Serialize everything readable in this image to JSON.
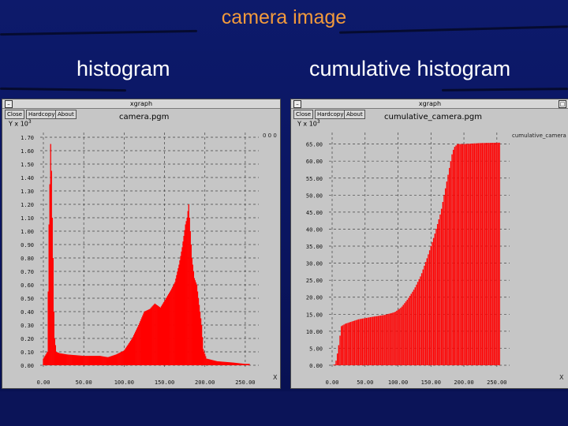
{
  "slide": {
    "title": "camera image",
    "left_caption": "histogram",
    "right_caption": "cumulative histogram"
  },
  "colors": {
    "background": "#0d1a6b",
    "title": "#f29a3c",
    "bars": "#ff0000",
    "window": "#c6c6c6"
  },
  "windows": [
    {
      "window_title": "xgraph",
      "buttons": [
        "Close",
        "Hardcopy",
        "About"
      ],
      "plot_title": "camera.pgm",
      "y_unit": "Y x 10^3",
      "y_unit_text": "Y x 10",
      "y_unit_exp": "3",
      "legend": "0 0 0",
      "x_corner": "X"
    },
    {
      "window_title": "xgraph",
      "buttons": [
        "Close",
        "Hardcopy",
        "About"
      ],
      "plot_title": "cumulative_camera.pgm",
      "y_unit": "Y x 10^3",
      "y_unit_text": "Y x 10",
      "y_unit_exp": "3",
      "legend": "cumulative_camera",
      "x_corner": "X"
    }
  ],
  "chart_data": [
    {
      "type": "bar",
      "title": "camera.pgm",
      "ylabel": "Y x 10^3",
      "xlim": [
        0,
        255
      ],
      "ylim": [
        0,
        1.7
      ],
      "yticks": [
        "0.00",
        "0.10",
        "0.20",
        "0.30",
        "0.40",
        "0.50",
        "0.60",
        "0.70",
        "0.80",
        "0.90",
        "1.00",
        "1.10",
        "1.20",
        "1.30",
        "1.40",
        "1.50",
        "1.60",
        "1.70"
      ],
      "xticks": [
        "0.00",
        "50.00",
        "100.00",
        "150.00",
        "200.00",
        "250.00"
      ],
      "grid": true,
      "profile": [
        [
          0,
          0.05
        ],
        [
          5,
          0.1
        ],
        [
          6,
          0.55
        ],
        [
          7,
          1.05
        ],
        [
          8,
          1.35
        ],
        [
          9,
          1.65
        ],
        [
          10,
          1.45
        ],
        [
          11,
          1.1
        ],
        [
          12,
          0.8
        ],
        [
          13,
          0.4
        ],
        [
          14,
          0.2
        ],
        [
          16,
          0.1
        ],
        [
          20,
          0.09
        ],
        [
          30,
          0.08
        ],
        [
          50,
          0.07
        ],
        [
          70,
          0.07
        ],
        [
          80,
          0.06
        ],
        [
          90,
          0.08
        ],
        [
          100,
          0.11
        ],
        [
          110,
          0.2
        ],
        [
          118,
          0.3
        ],
        [
          125,
          0.4
        ],
        [
          132,
          0.42
        ],
        [
          138,
          0.46
        ],
        [
          145,
          0.43
        ],
        [
          152,
          0.5
        ],
        [
          158,
          0.56
        ],
        [
          163,
          0.62
        ],
        [
          168,
          0.75
        ],
        [
          172,
          0.88
        ],
        [
          176,
          1.05
        ],
        [
          178,
          1.1
        ],
        [
          180,
          1.2
        ],
        [
          182,
          1.0
        ],
        [
          184,
          0.8
        ],
        [
          187,
          0.65
        ],
        [
          190,
          0.6
        ],
        [
          193,
          0.45
        ],
        [
          196,
          0.3
        ],
        [
          198,
          0.12
        ],
        [
          202,
          0.05
        ],
        [
          215,
          0.03
        ],
        [
          235,
          0.02
        ],
        [
          250,
          0.01
        ],
        [
          255,
          0.01
        ]
      ]
    },
    {
      "type": "bar",
      "title": "cumulative_camera.pgm",
      "ylabel": "Y x 10^3",
      "xlim": [
        0,
        255
      ],
      "ylim": [
        0,
        67
      ],
      "yticks": [
        "0.00",
        "5.00",
        "10.00",
        "15.00",
        "20.00",
        "25.00",
        "30.00",
        "35.00",
        "40.00",
        "45.00",
        "50.00",
        "55.00",
        "60.00",
        "65.00"
      ],
      "xticks": [
        "0.00",
        "50.00",
        "100.00",
        "150.00",
        "200.00",
        "250.00"
      ],
      "grid": true,
      "profile": [
        [
          0,
          0.0
        ],
        [
          5,
          0.3
        ],
        [
          9,
          4.5
        ],
        [
          14,
          11.5
        ],
        [
          20,
          12.2
        ],
        [
          40,
          13.5
        ],
        [
          60,
          14.2
        ],
        [
          80,
          14.8
        ],
        [
          95,
          15.6
        ],
        [
          105,
          17.0
        ],
        [
          115,
          19.5
        ],
        [
          125,
          22.5
        ],
        [
          135,
          26.5
        ],
        [
          145,
          32.0
        ],
        [
          155,
          38.0
        ],
        [
          165,
          45.0
        ],
        [
          172,
          52.0
        ],
        [
          178,
          58.0
        ],
        [
          182,
          62.0
        ],
        [
          185,
          64.0
        ],
        [
          190,
          65.0
        ],
        [
          200,
          65.0
        ],
        [
          225,
          65.3
        ],
        [
          250,
          65.4
        ],
        [
          255,
          65.4
        ]
      ]
    }
  ]
}
